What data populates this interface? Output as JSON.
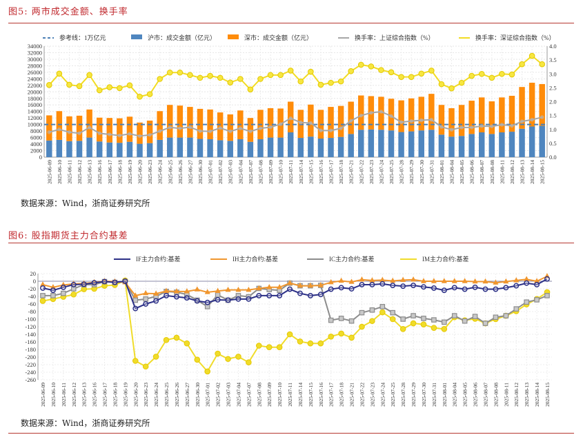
{
  "fig5": {
    "title": "图5:  两市成交金额、换手率",
    "source": "数据来源：Wind，浙商证券研究所"
  },
  "fig6": {
    "title": "图6:  股指期货主力合约基差",
    "source": "数据来源：Wind，浙商证券研究所"
  },
  "chart_data": [
    {
      "type": "bar",
      "title": "两市成交金额、换手率",
      "stacked": true,
      "categories": [
        "2025-06-09",
        "2025-06-10",
        "2025-06-11",
        "2025-06-12",
        "2025-06-13",
        "2025-06-16",
        "2025-06-17",
        "2025-06-18",
        "2025-06-19",
        "2025-06-20",
        "2025-06-23",
        "2025-06-24",
        "2025-06-25",
        "2025-06-26",
        "2025-06-27",
        "2025-06-30",
        "2025-07-01",
        "2025-07-02",
        "2025-07-03",
        "2025-07-04",
        "2025-07-07",
        "2025-07-08",
        "2025-07-09",
        "2025-07-10",
        "2025-07-11",
        "2025-07-14",
        "2025-07-15",
        "2025-07-16",
        "2025-07-17",
        "2025-07-18",
        "2025-07-21",
        "2025-07-22",
        "2025-07-23",
        "2025-07-24",
        "2025-07-25",
        "2025-07-28",
        "2025-07-29",
        "2025-07-30",
        "2025-07-31",
        "2025-08-01",
        "2025-08-04",
        "2025-08-05",
        "2025-08-06",
        "2025-08-07",
        "2025-08-08",
        "2025-08-11",
        "2025-08-12",
        "2025-08-13",
        "2025-08-14",
        "2025-08-15"
      ],
      "ylim_left": [
        0,
        34000
      ],
      "yticks_left": [
        "0",
        "2000",
        "4000",
        "6000",
        "8000",
        "10000",
        "12000",
        "14000",
        "16000",
        "18000",
        "20000",
        "22000",
        "24000",
        "26000",
        "28000",
        "30000",
        "32000",
        "34000"
      ],
      "ylim_right": [
        0,
        4.0
      ],
      "yticks_right": [
        "0.0",
        "0.5",
        "1.0",
        "1.5",
        "2.0",
        "2.5",
        "3.0",
        "3.5",
        "4.0"
      ],
      "legend_position": "top",
      "grid": true,
      "series": [
        {
          "name": "参考线：1万亿元",
          "kind": "dashed-line",
          "axis": "left",
          "color": "#4a7fb5",
          "value": 10000
        },
        {
          "name": "沪市：成交金额（亿元）",
          "kind": "bar",
          "axis": "left",
          "color": "#4f86bf",
          "values": [
            5100,
            5300,
            4900,
            5000,
            6000,
            4800,
            4500,
            4400,
            4700,
            4100,
            4300,
            5300,
            6000,
            6000,
            6000,
            5600,
            5500,
            5200,
            5000,
            5500,
            4700,
            5500,
            6000,
            6000,
            7600,
            5900,
            6300,
            5700,
            5900,
            6200,
            7100,
            8400,
            8500,
            8400,
            8200,
            7700,
            7900,
            8200,
            8400,
            6900,
            6300,
            6500,
            7100,
            7600,
            7100,
            7600,
            7800,
            8700,
            9400,
            9600
          ]
        },
        {
          "name": "深市：成交金额（亿元）",
          "kind": "bar",
          "axis": "left",
          "color": "#ff8c0a",
          "values": [
            7700,
            8800,
            7600,
            7700,
            8600,
            7300,
            7500,
            7500,
            7700,
            6500,
            6900,
            8800,
            10000,
            9800,
            9400,
            9200,
            9100,
            8500,
            8100,
            8800,
            7300,
            9000,
            9000,
            8900,
            9400,
            8600,
            9800,
            8800,
            9500,
            9500,
            9900,
            10500,
            10200,
            10100,
            9700,
            9700,
            10100,
            10300,
            11000,
            9100,
            8700,
            9500,
            10200,
            10700,
            10000,
            10700,
            11000,
            12800,
            13400,
            12800
          ]
        },
        {
          "name": "换手率：上证综合指数（%）",
          "kind": "line",
          "axis": "right",
          "color": "#a6a6a6",
          "values": [
            0.9,
            1.0,
            0.9,
            0.86,
            1.07,
            0.86,
            0.82,
            0.78,
            0.84,
            0.76,
            0.8,
            0.94,
            1.07,
            1.04,
            1.08,
            0.94,
            0.93,
            1.05,
            0.93,
            1.04,
            0.93,
            1.04,
            1.08,
            1.19,
            1.4,
            1.25,
            1.23,
            0.96,
            0.96,
            1.04,
            1.31,
            1.5,
            1.6,
            1.64,
            1.48,
            1.26,
            1.3,
            1.33,
            1.35,
            1.09,
            0.99,
            1.07,
            1.07,
            1.12,
            1.11,
            1.17,
            1.13,
            1.29,
            1.35,
            1.44
          ]
        },
        {
          "name": "换手率：深证综合指数（%）",
          "kind": "line",
          "axis": "right",
          "color": "#f2dc22",
          "values": [
            2.6,
            3.01,
            2.61,
            2.56,
            2.96,
            2.41,
            2.52,
            2.49,
            2.59,
            2.18,
            2.27,
            2.82,
            3.05,
            3.05,
            2.96,
            2.86,
            2.93,
            2.86,
            2.69,
            2.82,
            2.44,
            2.82,
            2.96,
            2.96,
            3.12,
            2.73,
            3.08,
            2.61,
            2.68,
            2.73,
            3.1,
            3.33,
            3.27,
            3.14,
            3.06,
            2.89,
            2.89,
            3.01,
            3.12,
            2.63,
            2.48,
            2.68,
            2.93,
            3.0,
            2.86,
            3.0,
            2.98,
            3.35,
            3.65,
            3.35
          ]
        }
      ]
    },
    {
      "type": "line",
      "title": "股指期货主力合约基差",
      "categories": [
        "2025-06-09",
        "2025-06-10",
        "2025-06-11",
        "2025-06-12",
        "2025-06-13",
        "2025-06-16",
        "2025-06-17",
        "2025-06-18",
        "2025-06-19",
        "2025-06-20",
        "2025-06-23",
        "2025-06-24",
        "2025-06-25",
        "2025-06-26",
        "2025-06-27",
        "2025-06-30",
        "2025-07-01",
        "2025-07-02",
        "2025-07-03",
        "2025-07-04",
        "2025-07-07",
        "2025-07-08",
        "2025-07-09",
        "2025-07-10",
        "2025-07-11",
        "2025-07-14",
        "2025-07-15",
        "2025-07-16",
        "2025-07-17",
        "2025-07-18",
        "2025-07-21",
        "2025-07-22",
        "2025-07-23",
        "2025-07-24",
        "2025-07-25",
        "2025-07-28",
        "2025-07-29",
        "2025-07-30",
        "2025-07-31",
        "2025-08-01",
        "2025-08-04",
        "2025-08-05",
        "2025-08-06",
        "2025-08-07",
        "2025-08-08",
        "2025-08-11",
        "2025-08-12",
        "2025-08-13",
        "2025-08-14",
        "2025-08-15"
      ],
      "ylim": [
        -260,
        20
      ],
      "yticks": [
        "20",
        "0",
        "-20",
        "-40",
        "-60",
        "-80",
        "-100",
        "-120",
        "-140",
        "-160",
        "-180",
        "-200",
        "-220",
        "-240",
        "-260"
      ],
      "legend_position": "top",
      "grid": true,
      "series": [
        {
          "name": "IF主力合约:基差",
          "color": "#2b2f86",
          "marker": "circle",
          "values": [
            -18,
            -24,
            -16,
            -9,
            -8,
            -4,
            -1,
            -3,
            0,
            -72,
            -60,
            -52,
            -38,
            -41,
            -44,
            -52,
            -56,
            -49,
            -50,
            -47,
            -47,
            -38,
            -38,
            -38,
            -21,
            -32,
            -38,
            -35,
            -21,
            -17,
            -20,
            -9,
            -9,
            -7,
            -11,
            -13,
            -11,
            -15,
            -18,
            -24,
            -17,
            -21,
            -16,
            -21,
            -21,
            -17,
            -12,
            -5,
            -9,
            6
          ]
        },
        {
          "name": "IH主力合约:基差",
          "color": "#f0962e",
          "marker": "triangle",
          "values": [
            -9,
            -16,
            -10,
            -7,
            -6,
            -3,
            0,
            -1,
            -3,
            -38,
            -32,
            -33,
            -26,
            -27,
            -27,
            -22,
            -29,
            -26,
            -23,
            -23,
            -23,
            -19,
            -16,
            -16,
            -5,
            -12,
            -12,
            -11,
            -3,
            1,
            -2,
            4,
            2,
            3,
            1,
            3,
            4,
            0,
            0,
            0,
            0,
            0,
            -1,
            -1,
            -4,
            -1,
            2,
            5,
            0,
            13
          ]
        },
        {
          "name": "IC主力合约:基差",
          "color": "#8c8c8c",
          "marker": "square",
          "values": [
            -38,
            -38,
            -32,
            -20,
            -9,
            -9,
            -1,
            -3,
            -1,
            -50,
            -47,
            -40,
            -27,
            -29,
            -35,
            -50,
            -67,
            -36,
            -50,
            -38,
            -41,
            -19,
            -22,
            -24,
            -5,
            -12,
            -12,
            -11,
            -103,
            -98,
            -105,
            -83,
            -76,
            -67,
            -83,
            -100,
            -91,
            -98,
            -102,
            -108,
            -91,
            -105,
            -93,
            -111,
            -95,
            -91,
            -73,
            -55,
            -49,
            -38
          ]
        },
        {
          "name": "IM主力合约:基差",
          "color": "#f0dc2a",
          "marker": "diamond",
          "values": [
            -52,
            -47,
            -41,
            -35,
            -21,
            -20,
            -12,
            -10,
            2,
            -210,
            -225,
            -199,
            -155,
            -149,
            -164,
            -207,
            -238,
            -191,
            -205,
            -199,
            -214,
            -170,
            -174,
            -174,
            -140,
            -159,
            -164,
            -164,
            -146,
            -138,
            -149,
            -120,
            -105,
            -82,
            -100,
            -126,
            -111,
            -114,
            -123,
            -126,
            -95,
            -103,
            -99,
            -111,
            -100,
            -91,
            -79,
            -61,
            -47,
            -29
          ]
        }
      ]
    }
  ]
}
